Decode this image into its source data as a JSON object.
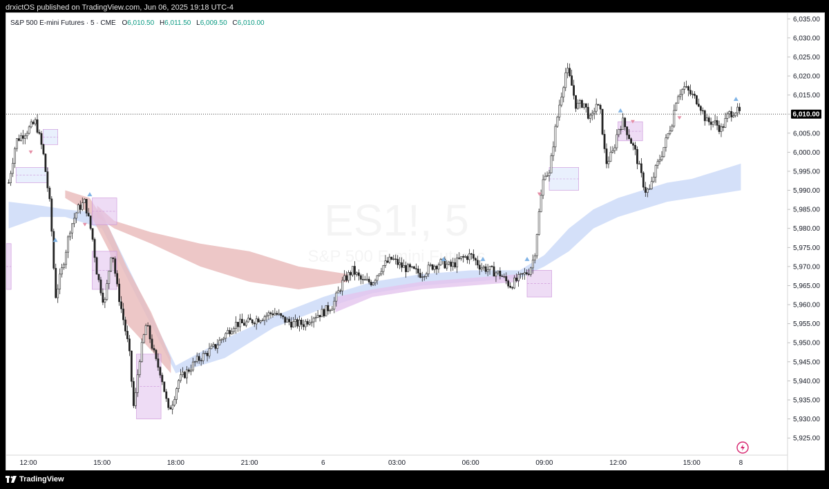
{
  "header": {
    "publisher": "drxictOS published on TradingView.com, Jun 06, 2025 19:18 UTC-4"
  },
  "legend": {
    "symbol": "S&P 500 E-mini Futures · 5 · CME",
    "open_label": "O",
    "open": "6,010.50",
    "high_label": "H",
    "high": "6,011.50",
    "low_label": "L",
    "low": "6,009.50",
    "close_label": "C",
    "close": "6,010.00"
  },
  "watermark": {
    "ticker": "ES1!, 5",
    "name": "S&P 500 E-mini Futures"
  },
  "price_tag": "6,010.00",
  "footer": {
    "brand": "TradingView"
  },
  "colors": {
    "up_area": "#c9d8f7",
    "down_area": "#e8b9b9",
    "purple_area": "#e3c4ee",
    "candle": "#222222",
    "price_tag": "#000000"
  },
  "chart_data": {
    "type": "candlestick",
    "title": "S&P 500 E-mini Futures · 5 · CME",
    "y_ticks": [
      6035,
      6030,
      6025,
      6020,
      6015,
      6010,
      6005,
      6000,
      5995,
      5990,
      5985,
      5980,
      5975,
      5970,
      5965,
      5960,
      5955,
      5950,
      5945,
      5940,
      5935,
      5930,
      5925
    ],
    "y_tick_labels": [
      "6,035.00",
      "6,030.00",
      "6,025.00",
      "6,020.00",
      "6,015.00",
      "6,010.00",
      "6,005.00",
      "6,000.00",
      "5,995.00",
      "5,990.00",
      "5,985.00",
      "5,980.00",
      "5,975.00",
      "5,970.00",
      "5,965.00",
      "5,960.00",
      "5,955.00",
      "5,950.00",
      "5,945.00",
      "5,940.00",
      "5,935.00",
      "5,930.00",
      "5,925.00"
    ],
    "ylim": [
      5920.5,
      6036.5
    ],
    "x_ticks": [
      "12:00",
      "15:00",
      "18:00",
      "21:00",
      "6",
      "03:00",
      "06:00",
      "09:00",
      "12:00",
      "15:00",
      "8"
    ],
    "x_tick_positions_hours": [
      0,
      3,
      6,
      9,
      12,
      15,
      18,
      21,
      24,
      27,
      29
    ],
    "xlim_hours": [
      -0.9,
      30.9
    ],
    "last_price": 6010.0,
    "price_path": [
      [
        -0.8,
        5992
      ],
      [
        -0.5,
        6003
      ],
      [
        0,
        6006
      ],
      [
        0.3,
        6008
      ],
      [
        0.6,
        6000
      ],
      [
        0.9,
        5985
      ],
      [
        1.1,
        5962
      ],
      [
        1.4,
        5970
      ],
      [
        1.7,
        5980
      ],
      [
        2.0,
        5985
      ],
      [
        2.3,
        5987
      ],
      [
        2.6,
        5978
      ],
      [
        2.8,
        5968
      ],
      [
        3.1,
        5960
      ],
      [
        3.4,
        5975
      ],
      [
        3.6,
        5965
      ],
      [
        3.9,
        5955
      ],
      [
        4.1,
        5948
      ],
      [
        4.3,
        5932
      ],
      [
        4.5,
        5945
      ],
      [
        4.8,
        5955
      ],
      [
        5.0,
        5950
      ],
      [
        5.2,
        5945
      ],
      [
        5.4,
        5942
      ],
      [
        5.7,
        5932
      ],
      [
        5.9,
        5935
      ],
      [
        6.1,
        5940
      ],
      [
        6.4,
        5942
      ],
      [
        6.8,
        5945
      ],
      [
        7.2,
        5947
      ],
      [
        7.6,
        5949
      ],
      [
        8.0,
        5952
      ],
      [
        8.4,
        5955
      ],
      [
        8.8,
        5955
      ],
      [
        9.2,
        5956
      ],
      [
        9.6,
        5957
      ],
      [
        10.0,
        5958
      ],
      [
        10.4,
        5956
      ],
      [
        10.8,
        5955
      ],
      [
        11.2,
        5955
      ],
      [
        11.6,
        5957
      ],
      [
        12.0,
        5958
      ],
      [
        12.4,
        5960
      ],
      [
        12.8,
        5966
      ],
      [
        13.2,
        5969
      ],
      [
        13.6,
        5966
      ],
      [
        14.0,
        5966
      ],
      [
        14.4,
        5970
      ],
      [
        14.8,
        5972
      ],
      [
        15.2,
        5970
      ],
      [
        15.6,
        5969
      ],
      [
        16.0,
        5968
      ],
      [
        16.4,
        5970
      ],
      [
        16.8,
        5971
      ],
      [
        17.2,
        5970
      ],
      [
        17.6,
        5972
      ],
      [
        18.0,
        5973
      ],
      [
        18.4,
        5970
      ],
      [
        18.8,
        5969
      ],
      [
        19.2,
        5968
      ],
      [
        19.6,
        5965
      ],
      [
        20.0,
        5967
      ],
      [
        20.4,
        5969
      ],
      [
        20.6,
        5973
      ],
      [
        20.8,
        5985
      ],
      [
        21.0,
        5995
      ],
      [
        21.2,
        5994
      ],
      [
        21.4,
        6004
      ],
      [
        21.6,
        6012
      ],
      [
        21.9,
        6022
      ],
      [
        22.1,
        6018
      ],
      [
        22.3,
        6012
      ],
      [
        22.6,
        6013
      ],
      [
        22.9,
        6008
      ],
      [
        23.1,
        6013
      ],
      [
        23.3,
        6010
      ],
      [
        23.5,
        5997
      ],
      [
        23.8,
        6000
      ],
      [
        24.0,
        6006
      ],
      [
        24.2,
        6008
      ],
      [
        24.4,
        6005
      ],
      [
        24.7,
        6000
      ],
      [
        24.9,
        5995
      ],
      [
        25.1,
        5990
      ],
      [
        25.3,
        5990
      ],
      [
        25.5,
        5995
      ],
      [
        25.8,
        6000
      ],
      [
        26.0,
        6004
      ],
      [
        26.2,
        6008
      ],
      [
        26.4,
        6015
      ],
      [
        26.7,
        6017
      ],
      [
        27.0,
        6015
      ],
      [
        27.3,
        6013
      ],
      [
        27.6,
        6008
      ],
      [
        27.9,
        6008
      ],
      [
        28.2,
        6006
      ],
      [
        28.5,
        6010
      ],
      [
        28.8,
        6011
      ],
      [
        29.0,
        6010
      ]
    ],
    "bands": [
      {
        "name": "",
        "color": "#c9d8f7",
        "start": -0.8,
        "end": 29,
        "points": [
          [
            -0.8,
            5980,
            5987
          ],
          [
            0.5,
            5983,
            5986
          ],
          [
            1.5,
            5983,
            5985
          ],
          [
            3,
            5980,
            5984
          ],
          [
            6,
            5942,
            5944
          ],
          [
            8,
            5946,
            5951
          ],
          [
            10,
            5954,
            5957
          ],
          [
            12,
            5959,
            5962
          ],
          [
            14,
            5963,
            5966
          ],
          [
            16,
            5965,
            5968
          ],
          [
            18,
            5966,
            5969
          ],
          [
            20,
            5967,
            5969
          ],
          [
            21,
            5970,
            5973
          ],
          [
            22,
            5974,
            5980
          ],
          [
            23,
            5980,
            5985
          ],
          [
            24,
            5983,
            5988
          ],
          [
            25,
            5985,
            5990
          ],
          [
            26,
            5987,
            5992
          ],
          [
            27,
            5988,
            5993
          ],
          [
            28,
            5989,
            5995
          ],
          [
            29,
            5990,
            5997
          ]
        ]
      },
      {
        "name": "",
        "color": "#e8b9b9",
        "start": 3,
        "end": 13,
        "points": [
          [
            2.8,
            5983,
            5986
          ],
          [
            3.5,
            5980,
            5982
          ],
          [
            5,
            5976,
            5979
          ],
          [
            7,
            5970,
            5976
          ],
          [
            9,
            5966,
            5974
          ],
          [
            11,
            5964,
            5970
          ],
          [
            13,
            5966,
            5968
          ]
        ]
      },
      {
        "name": "",
        "color": "#e8b9b9",
        "start": 1.5,
        "end": 5.8,
        "points": [
          [
            1.5,
            5988,
            5990
          ],
          [
            2.5,
            5984,
            5988
          ],
          [
            3.3,
            5974,
            5980
          ],
          [
            4.0,
            5955,
            5970
          ],
          [
            5.0,
            5948,
            5958
          ],
          [
            5.8,
            5942,
            5946
          ]
        ]
      },
      {
        "name": "",
        "color": "#e3c4ee",
        "start": 12.5,
        "end": 20.5,
        "points": [
          [
            12.5,
            5958,
            5962
          ],
          [
            14,
            5962,
            5964
          ],
          [
            16,
            5964,
            5966
          ],
          [
            18,
            5965,
            5967
          ],
          [
            20,
            5966,
            5968
          ]
        ]
      }
    ],
    "boxes": [
      {
        "x1": 2.6,
        "x2": 3.6,
        "y1": 5964,
        "y2": 5974,
        "color": "#e3c4ee"
      },
      {
        "x1": 2.6,
        "x2": 3.6,
        "y1": 5981,
        "y2": 5988,
        "color": "#e3c4ee"
      },
      {
        "x1": 4.4,
        "x2": 5.4,
        "y1": 5930,
        "y2": 5947,
        "color": "#e3c4ee"
      },
      {
        "x1": 20.3,
        "x2": 21.3,
        "y1": 5962,
        "y2": 5969,
        "color": "#e3c4ee"
      },
      {
        "x1": 24.0,
        "x2": 25.0,
        "y1": 6003,
        "y2": 6008,
        "color": "#e3c4ee"
      },
      {
        "x1": 21.2,
        "x2": 22.4,
        "y1": 5990,
        "y2": 5996,
        "color": "#dbe6fb"
      },
      {
        "x1": -0.9,
        "x2": -0.7,
        "y1": 5964,
        "y2": 5976,
        "color": "#e3c4ee"
      },
      {
        "x1": -0.5,
        "x2": 0.8,
        "y1": 5992,
        "y2": 5996,
        "color": "#dbe6fb"
      },
      {
        "x1": 0.6,
        "x2": 1.2,
        "y1": 6002,
        "y2": 6006,
        "color": "#dbe6fb"
      }
    ],
    "triangles_up": [
      [
        1.1,
        5977
      ],
      [
        2.5,
        5989
      ],
      [
        16.9,
        5972
      ],
      [
        18.5,
        5972
      ],
      [
        20.3,
        5972
      ],
      [
        24.1,
        6011
      ],
      [
        28.8,
        6014
      ]
    ],
    "triangles_down": [
      [
        0.1,
        6000
      ],
      [
        2.3,
        5981
      ],
      [
        20.8,
        5989
      ],
      [
        24.6,
        6008
      ],
      [
        26.5,
        6009
      ]
    ],
    "grid": false
  }
}
